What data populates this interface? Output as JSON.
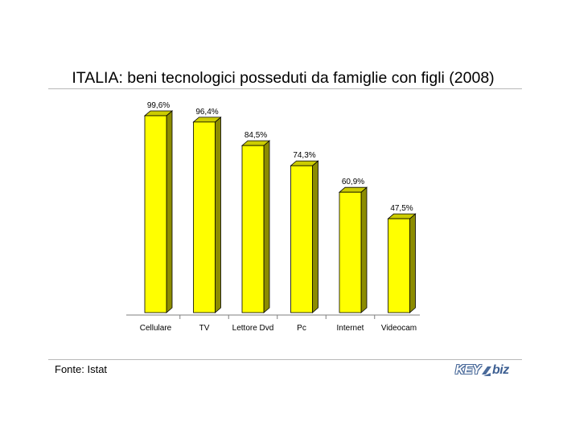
{
  "chart_data": {
    "type": "bar",
    "title": "ITALIA: beni tecnologici posseduti da famiglie con figli (2008)",
    "categories": [
      "Cellulare",
      "TV",
      "Lettore Dvd",
      "Pc",
      "Internet",
      "Videocam"
    ],
    "values": [
      99.6,
      96.4,
      84.5,
      74.3,
      60.9,
      47.5
    ],
    "data_labels": [
      "99,6%",
      "96,4%",
      "84,5%",
      "74,3%",
      "60,9%",
      "47,5%"
    ],
    "ylim": [
      0,
      100
    ],
    "grid": false,
    "legend": "none",
    "style": "3d",
    "colors": {
      "bar_front": "#ffff00",
      "bar_side": "#8c8c00",
      "bar_top": "#cccc00",
      "outline": "#000000"
    }
  },
  "footer": {
    "source": "Fonte: Istat",
    "logo_text": "KEY4biz"
  }
}
